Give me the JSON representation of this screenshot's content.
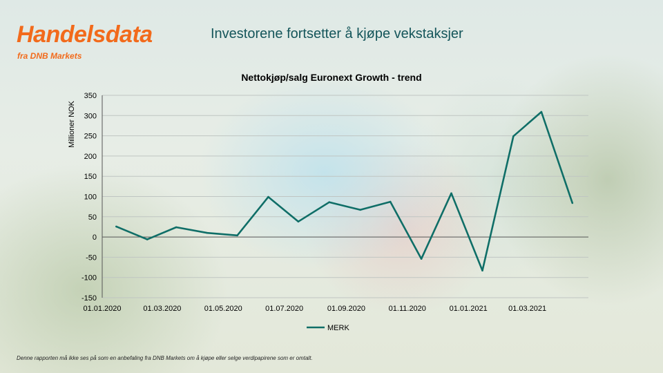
{
  "header": {
    "brand": "Handelsdata",
    "brand_sub": "fra DNB Markets",
    "title": "Investorene fortsetter å kjøpe vekstaksjer"
  },
  "footer": {
    "disclaimer": "Denne rapporten må ikke ses på som en anbefaling fra DNB Markets om å kjøpe eller selge verdipapirene som er omtalt."
  },
  "colors": {
    "brand": "#f26a1b",
    "title": "#14555a",
    "series": "#0f6e67"
  },
  "chart_data": {
    "type": "line",
    "title": "Nettokjøp/salg Euronext Growth - trend",
    "ylabel": "Millioner NOK",
    "xlabel": "",
    "ylim": [
      -150,
      350
    ],
    "yticks": [
      350,
      300,
      250,
      200,
      150,
      100,
      50,
      0,
      -50,
      -100,
      -150
    ],
    "xticks": [
      "01.01.2020",
      "01.03.2020",
      "01.05.2020",
      "01.07.2020",
      "01.09.2020",
      "01.11.2020",
      "01.01.2021",
      "01.03.2021"
    ],
    "grid": true,
    "legend": "bottom",
    "x": [
      "2020-01-15",
      "2020-02-15",
      "2020-03-15",
      "2020-04-15",
      "2020-05-15",
      "2020-06-15",
      "2020-07-15",
      "2020-08-15",
      "2020-09-15",
      "2020-10-15",
      "2020-11-15",
      "2020-12-15",
      "2021-01-15",
      "2021-02-15",
      "2021-03-15",
      "2021-04-15"
    ],
    "series": [
      {
        "name": "MERK",
        "values": [
          26,
          -6,
          24,
          10,
          4,
          99,
          38,
          86,
          67,
          87,
          -54,
          108,
          -83,
          249,
          309,
          84
        ]
      }
    ]
  }
}
